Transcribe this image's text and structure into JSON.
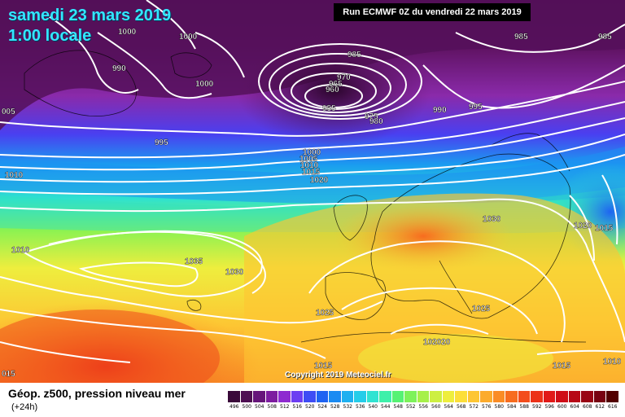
{
  "header": {
    "date": "samedi 23 mars 2019",
    "time": "1:00 locale",
    "run": "Run ECMWF 0Z du vendredi 22 mars 2019"
  },
  "map": {
    "copyright": "Copyright 2019 Meteociel.fr",
    "isobars": [
      {
        "label": "1000",
        "role": "isobar-label"
      },
      {
        "label": "1000",
        "role": "isobar-label"
      },
      {
        "label": "1000",
        "role": "isobar-label"
      },
      {
        "label": "990",
        "role": "isobar-label"
      },
      {
        "label": "005",
        "role": "isobar-label"
      },
      {
        "label": "985",
        "role": "isobar-label"
      },
      {
        "label": "985",
        "role": "isobar-label"
      },
      {
        "label": "985",
        "role": "isobar-label"
      },
      {
        "label": "970",
        "role": "isobar-label"
      },
      {
        "label": "965",
        "role": "isobar-label"
      },
      {
        "label": "960",
        "role": "isobar-label"
      },
      {
        "label": "955",
        "role": "isobar-label"
      },
      {
        "label": "975",
        "role": "isobar-label"
      },
      {
        "label": "980",
        "role": "isobar-label"
      },
      {
        "label": "990",
        "role": "isobar-label"
      },
      {
        "label": "995",
        "role": "isobar-label"
      },
      {
        "label": "995",
        "role": "isobar-label"
      },
      {
        "label": "1000",
        "role": "isobar-label"
      },
      {
        "label": "1005",
        "role": "isobar-label"
      },
      {
        "label": "1010",
        "role": "isobar-label"
      },
      {
        "label": "1015",
        "role": "isobar-label"
      },
      {
        "label": "1020",
        "role": "isobar-label"
      },
      {
        "label": "1010",
        "role": "isobar-label"
      },
      {
        "label": "1010",
        "role": "isobar-label"
      },
      {
        "label": "1035",
        "role": "isobar-label"
      },
      {
        "label": "1030",
        "role": "isobar-label"
      },
      {
        "label": "1030",
        "role": "isobar-label"
      },
      {
        "label": "1020",
        "role": "isobar-label"
      },
      {
        "label": "1015",
        "role": "isobar-label"
      },
      {
        "label": "1025",
        "role": "isobar-label"
      },
      {
        "label": "1025",
        "role": "isobar-label"
      },
      {
        "label": "102020",
        "role": "isobar-label"
      },
      {
        "label": "1015",
        "role": "isobar-label"
      },
      {
        "label": "1015",
        "role": "isobar-label"
      },
      {
        "label": "1010",
        "role": "isobar-label"
      },
      {
        "label": "015",
        "role": "isobar-label"
      }
    ]
  },
  "legend": {
    "title": "Géop. z500, pression niveau mer",
    "subtitle": "(+24h)",
    "ticks": [
      "496",
      "500",
      "504",
      "508",
      "512",
      "516",
      "520",
      "524",
      "528",
      "532",
      "536",
      "540",
      "544",
      "548",
      "552",
      "556",
      "560",
      "564",
      "568",
      "572",
      "576",
      "580",
      "584",
      "588",
      "592",
      "596",
      "600",
      "604",
      "608",
      "612",
      "616"
    ],
    "colors": [
      "#3a0a3a",
      "#4e0f52",
      "#66157a",
      "#7d1ca0",
      "#8e2ad0",
      "#6c3df2",
      "#3e4cf5",
      "#1e63f2",
      "#1a8bf2",
      "#1eb0f0",
      "#25cde9",
      "#30e3d2",
      "#3ef0aa",
      "#56f274",
      "#7df25a",
      "#a6f04a",
      "#cdef42",
      "#eeee3e",
      "#fcdf3a",
      "#fdc633",
      "#fcab2c",
      "#fa8c25",
      "#f76c1f",
      "#f34d1c",
      "#ec3219",
      "#e11a18",
      "#cf0d17",
      "#b70816",
      "#990514",
      "#780311",
      "#520000"
    ]
  }
}
